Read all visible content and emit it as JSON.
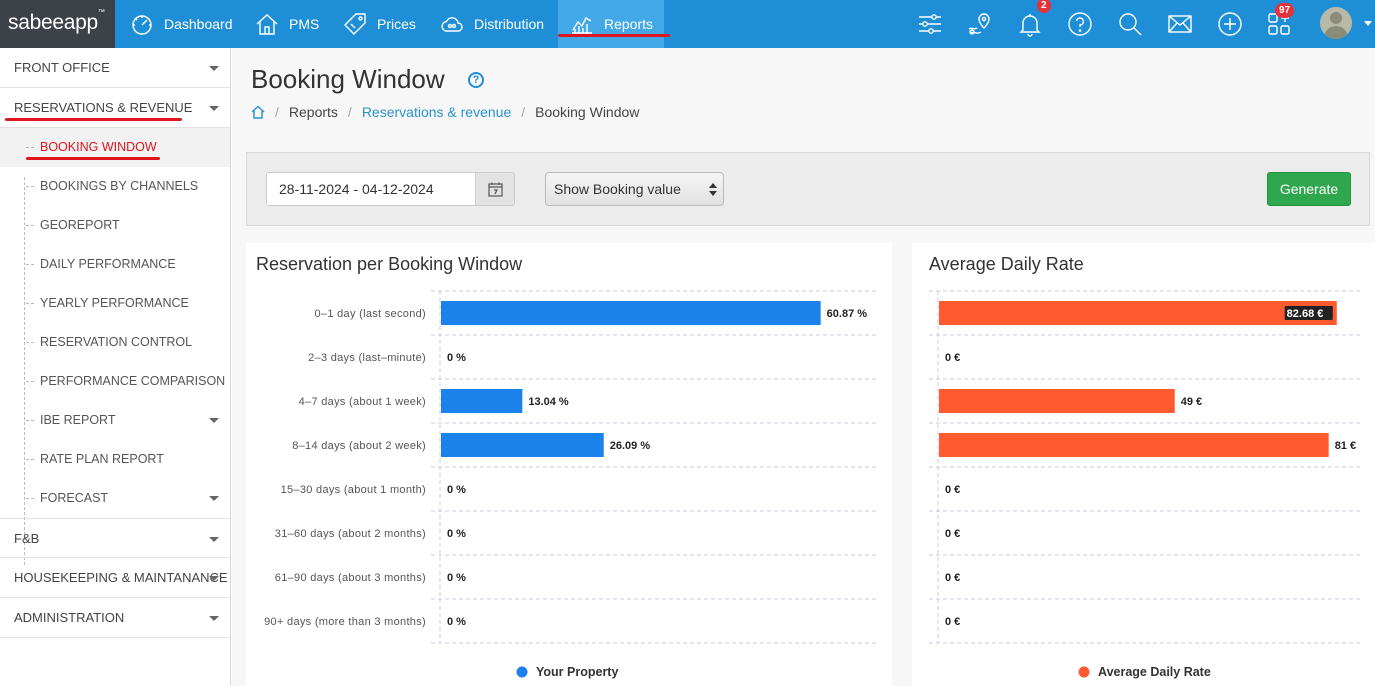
{
  "app": {
    "logo": "sabeeapp",
    "logo_tm": "™"
  },
  "nav": {
    "items": [
      {
        "label": "Dashboard",
        "icon": "dashboard-gauge-icon"
      },
      {
        "label": "PMS",
        "icon": "house-icon"
      },
      {
        "label": "Prices",
        "icon": "price-tag-icon"
      },
      {
        "label": "Distribution",
        "icon": "cloud-icon"
      },
      {
        "label": "Reports",
        "icon": "chart-icon",
        "active": true
      }
    ],
    "notifications_badge": "2",
    "apps_badge": "97",
    "tools": [
      "sliders-icon",
      "location-pin-icon",
      "bell-icon",
      "help-icon",
      "search-icon",
      "mail-icon",
      "add-icon",
      "apps-add-icon"
    ]
  },
  "sidebar": {
    "sections": [
      "FRONT OFFICE",
      "RESERVATIONS & REVENUE",
      "F&B",
      "HOUSEKEEPING & MAINTANANCE",
      "ADMINISTRATION"
    ],
    "subitems": [
      "BOOKING WINDOW",
      "BOOKINGS BY CHANNELS",
      "GEOREPORT",
      "DAILY PERFORMANCE",
      "YEARLY PERFORMANCE",
      "RESERVATION CONTROL",
      "PERFORMANCE COMPARISON",
      "IBE REPORT",
      "RATE PLAN REPORT",
      "FORECAST"
    ],
    "active_subitem": "BOOKING WINDOW"
  },
  "page": {
    "title": "Booking Window",
    "help": "?",
    "breadcrumb": [
      "Reports",
      "Reservations & revenue",
      "Booking Window"
    ]
  },
  "filters": {
    "date_range": "28-11-2024 - 04-12-2024",
    "select_value": "Show Booking value",
    "generate_label": "Generate"
  },
  "colors": {
    "primary": "#1e8fd6",
    "blue_bar": "#1a82ea",
    "orange_bar": "#ff5a30",
    "accent_red": "#e0141e",
    "green": "#2fa74f"
  },
  "chart_data": [
    {
      "type": "bar",
      "orientation": "horizontal",
      "title": "Reservation per Booking Window",
      "categories": [
        "0–1 day (last second)",
        "2–3 days (last–minute)",
        "4–7 days (about 1 week)",
        "8–14 days (about 2 week)",
        "15–30 days (about 1 month)",
        "31–60 days (about 2 months)",
        "61–90 days (about 3 months)",
        "90+ days (more than 3 months)"
      ],
      "series": [
        {
          "name": "Your Property",
          "values": [
            60.87,
            0,
            13.04,
            26.09,
            0,
            0,
            0,
            0
          ]
        }
      ],
      "value_labels": [
        "60.87 %",
        "0 %",
        "13.04 %",
        "26.09 %",
        "0 %",
        "0 %",
        "0 %",
        "0 %"
      ],
      "xlim": [
        0,
        80
      ],
      "legend_position": "bottom",
      "grid": true,
      "color": "#1a82ea"
    },
    {
      "type": "bar",
      "orientation": "horizontal",
      "title": "Average Daily Rate",
      "categories": [
        "0–1 day (last second)",
        "2–3 days (last–minute)",
        "4–7 days (about 1 week)",
        "8–14 days (about 2 week)",
        "15–30 days (about 1 month)",
        "31–60 days (about 2 months)",
        "61–90 days (about 3 months)",
        "90+ days (more than 3 months)"
      ],
      "series": [
        {
          "name": "Average Daily Rate",
          "values": [
            82.68,
            0,
            49,
            81,
            0,
            0,
            0,
            0
          ]
        }
      ],
      "value_labels": [
        "82.68 €",
        "0 €",
        "49 €",
        "81 €",
        "0 €",
        "0 €",
        "0 €",
        "0 €"
      ],
      "xlim": [
        0,
        90
      ],
      "legend_position": "bottom",
      "grid": true,
      "color": "#ff5a30"
    }
  ]
}
